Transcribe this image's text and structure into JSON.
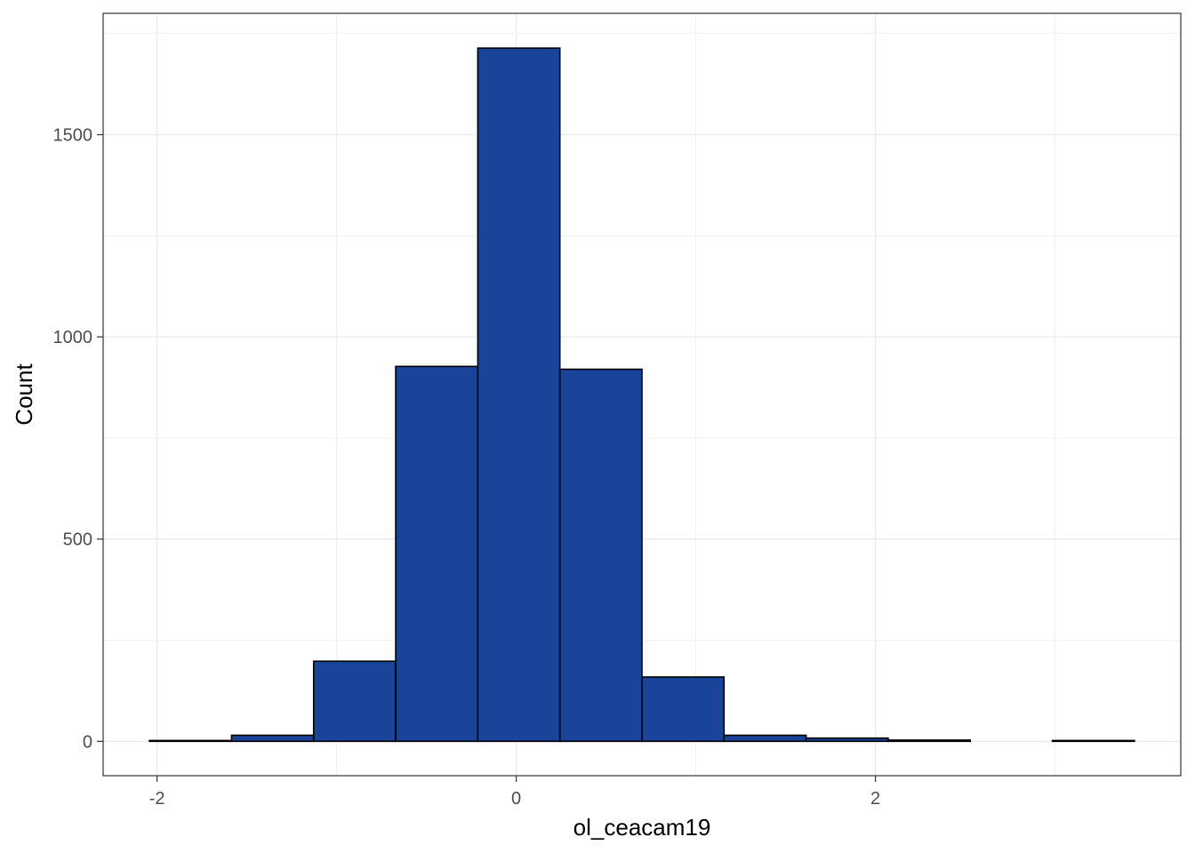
{
  "chart_data": {
    "type": "bar",
    "subtype": "histogram",
    "title": "",
    "xlabel": "ol_ceacam19",
    "ylabel": "Count",
    "xlim": [
      -2.3,
      3.7
    ],
    "ylim": [
      -85,
      1800
    ],
    "x_ticks": [
      -2,
      0,
      2
    ],
    "x_tick_labels": [
      "-2",
      "0",
      "2"
    ],
    "y_ticks": [
      0,
      500,
      1000,
      1500
    ],
    "y_tick_labels": [
      "0",
      "500",
      "1000",
      "1500"
    ],
    "bin_width": 0.457,
    "bins": [
      {
        "x0": -2.042,
        "x1": -1.585,
        "count": 2
      },
      {
        "x0": -1.585,
        "x1": -1.128,
        "count": 15
      },
      {
        "x0": -1.128,
        "x1": -0.671,
        "count": 198
      },
      {
        "x0": -0.671,
        "x1": -0.214,
        "count": 927
      },
      {
        "x0": -0.214,
        "x1": 0.243,
        "count": 1714
      },
      {
        "x0": 0.243,
        "x1": 0.7,
        "count": 920
      },
      {
        "x0": 0.7,
        "x1": 1.157,
        "count": 159
      },
      {
        "x0": 1.157,
        "x1": 1.614,
        "count": 15
      },
      {
        "x0": 1.614,
        "x1": 2.071,
        "count": 8
      },
      {
        "x0": 2.071,
        "x1": 2.528,
        "count": 3
      },
      {
        "x0": 2.528,
        "x1": 2.985,
        "count": 0
      },
      {
        "x0": 2.985,
        "x1": 3.442,
        "count": 2
      }
    ],
    "grid": true,
    "theme": "bw",
    "colors": {
      "fill": "#1a4499",
      "stroke": "#000000",
      "grid": "#ebebeb",
      "panel_border": "#333333"
    }
  }
}
